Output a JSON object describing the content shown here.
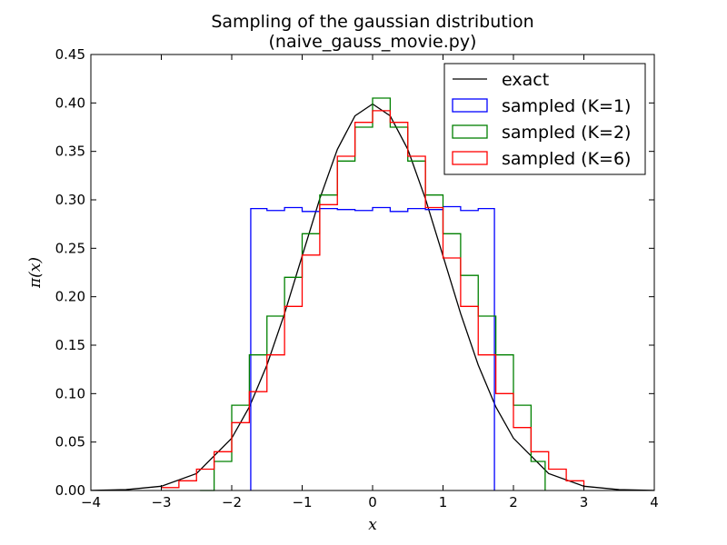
{
  "chart_data": {
    "type": "line",
    "title": [
      "Sampling of the gaussian distribution",
      "(naive_gauss_movie.py)"
    ],
    "xlabel": "x",
    "ylabel": "π(x)",
    "xlim": [
      -4,
      4
    ],
    "ylim": [
      0,
      0.45
    ],
    "xticks": [
      -4,
      -3,
      -2,
      -1,
      0,
      1,
      2,
      3,
      4
    ],
    "xtick_labels": [
      "−4",
      "−3",
      "−2",
      "−1",
      "0",
      "1",
      "2",
      "3",
      "4"
    ],
    "yticks": [
      0,
      0.05,
      0.1,
      0.15,
      0.2,
      0.25,
      0.3,
      0.35,
      0.4,
      0.45
    ],
    "ytick_labels": [
      "0.00",
      "0.05",
      "0.10",
      "0.15",
      "0.20",
      "0.25",
      "0.30",
      "0.35",
      "0.40",
      "0.45"
    ],
    "grid": false,
    "legend_position": "top-right",
    "series": [
      {
        "name": "exact",
        "style": "line",
        "color": "#000000",
        "x": [
          -4.0,
          -3.5,
          -3.0,
          -2.5,
          -2.0,
          -1.75,
          -1.5,
          -1.25,
          -1.0,
          -0.75,
          -0.5,
          -0.25,
          0.0,
          0.25,
          0.5,
          0.75,
          1.0,
          1.25,
          1.5,
          1.75,
          2.0,
          2.5,
          3.0,
          3.5,
          4.0
        ],
        "y": [
          0.0001,
          0.0009,
          0.0044,
          0.0175,
          0.054,
          0.0863,
          0.1295,
          0.1826,
          0.242,
          0.3011,
          0.3521,
          0.3867,
          0.3989,
          0.3867,
          0.3521,
          0.3011,
          0.242,
          0.1826,
          0.1295,
          0.0863,
          0.054,
          0.0175,
          0.0044,
          0.0009,
          0.0001
        ]
      },
      {
        "name": "sampled (K=1)",
        "style": "step",
        "color": "#0000ff",
        "x": [
          -1.73,
          -1.73,
          -1.5,
          -1.25,
          -1.0,
          -0.75,
          -0.5,
          -0.25,
          0.0,
          0.25,
          0.5,
          0.75,
          1.0,
          1.25,
          1.5,
          1.73,
          1.73
        ],
        "y": [
          0.0,
          0.291,
          0.289,
          0.292,
          0.288,
          0.291,
          0.29,
          0.289,
          0.292,
          0.288,
          0.291,
          0.29,
          0.293,
          0.289,
          0.291,
          0.289,
          0.0
        ]
      },
      {
        "name": "sampled (K=2)",
        "style": "step",
        "color": "#008000",
        "x": [
          -2.45,
          -2.25,
          -2.0,
          -1.75,
          -1.5,
          -1.25,
          -1.0,
          -0.75,
          -0.5,
          -0.25,
          0.0,
          0.25,
          0.5,
          0.75,
          1.0,
          1.25,
          1.5,
          1.75,
          2.0,
          2.25,
          2.45
        ],
        "y": [
          0.0,
          0.03,
          0.088,
          0.14,
          0.18,
          0.22,
          0.265,
          0.305,
          0.34,
          0.375,
          0.405,
          0.375,
          0.34,
          0.305,
          0.265,
          0.222,
          0.18,
          0.14,
          0.088,
          0.03,
          0.0
        ]
      },
      {
        "name": "sampled (K=6)",
        "style": "step",
        "color": "#ff0000",
        "x": [
          -3.0,
          -2.75,
          -2.5,
          -2.25,
          -2.0,
          -1.75,
          -1.5,
          -1.25,
          -1.0,
          -0.75,
          -0.5,
          -0.25,
          0.0,
          0.25,
          0.5,
          0.75,
          1.0,
          1.25,
          1.5,
          1.75,
          2.0,
          2.25,
          2.5,
          2.75,
          3.0
        ],
        "y": [
          0.003,
          0.01,
          0.022,
          0.04,
          0.07,
          0.102,
          0.14,
          0.19,
          0.243,
          0.295,
          0.345,
          0.38,
          0.392,
          0.38,
          0.345,
          0.292,
          0.24,
          0.19,
          0.14,
          0.1,
          0.065,
          0.04,
          0.022,
          0.01,
          0.003
        ]
      }
    ]
  }
}
